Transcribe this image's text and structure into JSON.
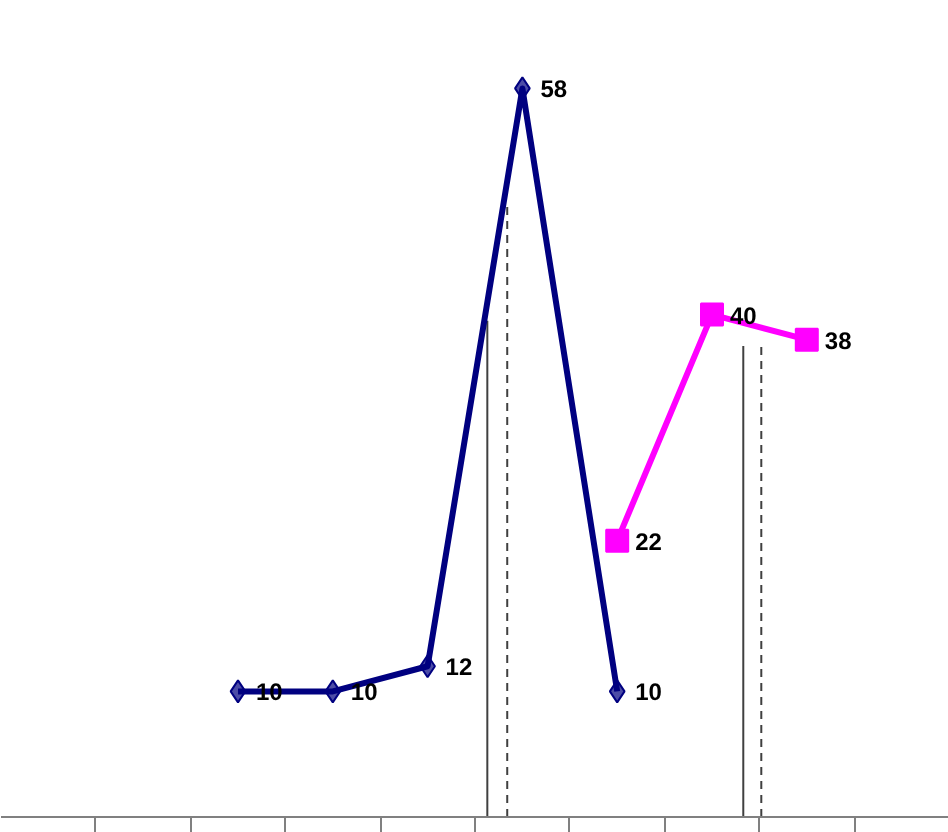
{
  "chart_data": {
    "type": "line",
    "categories": [
      null,
      null,
      null,
      null,
      null,
      null,
      null,
      null,
      null,
      null
    ],
    "grid": false,
    "data_labels": true,
    "series": [
      {
        "color": "#000080",
        "marker": "diamond",
        "values": [
          null,
          null,
          10,
          10,
          12,
          58,
          10,
          null,
          null,
          null
        ]
      },
      {
        "color": "#ff00ff",
        "marker": "square",
        "values": [
          null,
          null,
          null,
          null,
          null,
          null,
          22,
          40,
          38,
          null
        ]
      }
    ]
  }
}
